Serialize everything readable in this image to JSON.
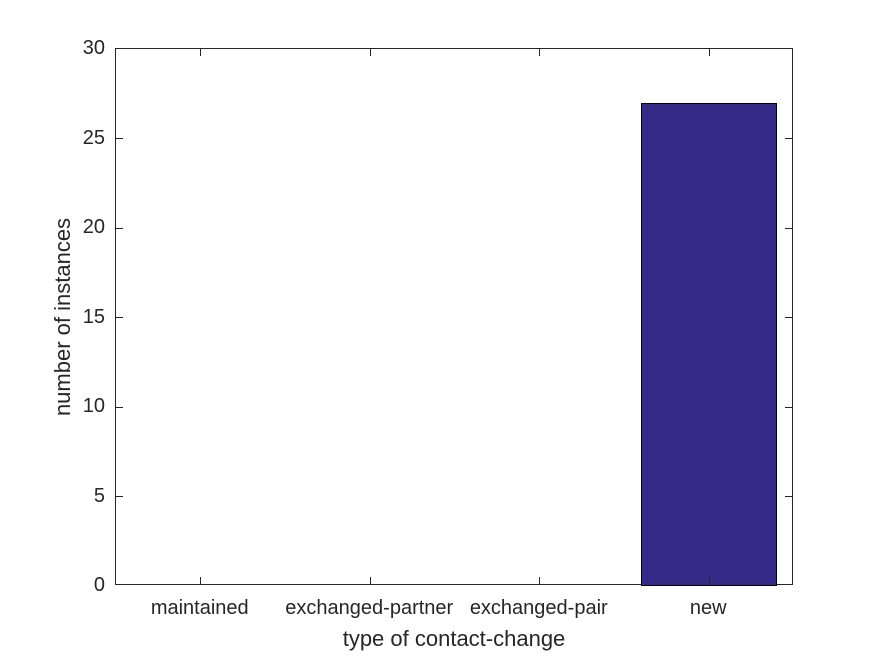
{
  "chart_data": {
    "type": "bar",
    "categories": [
      "maintained",
      "exchanged-partner",
      "exchanged-pair",
      "new"
    ],
    "values": [
      0,
      0,
      0,
      27
    ],
    "title": "",
    "xlabel": "type of contact-change",
    "ylabel": "number of instances",
    "ylim": [
      0,
      30
    ],
    "yticks": [
      0,
      5,
      10,
      15,
      20,
      25,
      30
    ],
    "bar_width_fraction": 0.8,
    "grid": false,
    "legend_position": "none",
    "colors": {
      "bar_fill": "#352a87",
      "bar_edge": "#000000",
      "axis": "#262626",
      "text": "#262626",
      "background": "#ffffff"
    }
  }
}
